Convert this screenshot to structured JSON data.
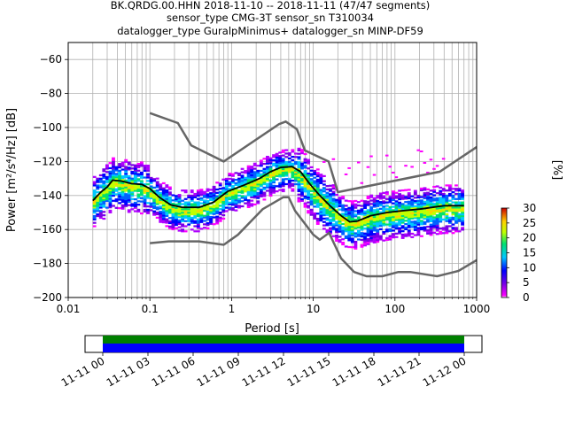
{
  "chart_data": {
    "type": "heatmap",
    "title_lines": [
      "BK.QRDG.00.HHN   2018-11-10 -- 2018-11-11  (47/47 segments)",
      "sensor_type CMG-3T sensor_sn T310034",
      "datalogger_type GuralpMinimus+ datalogger_sn MINP-DF59"
    ],
    "xlabel": "Period [s]",
    "ylabel": "Power [m²/s⁴/Hz] [dB]",
    "x_scale": "log",
    "xlim": [
      0.01,
      1000
    ],
    "ylim": [
      -200,
      -50
    ],
    "x_ticks": [
      {
        "value": 0.01,
        "label": "0.01"
      },
      {
        "value": 0.1,
        "label": "0.1"
      },
      {
        "value": 1,
        "label": "1"
      },
      {
        "value": 10,
        "label": "10"
      },
      {
        "value": 100,
        "label": "100"
      },
      {
        "value": 1000,
        "label": "1000"
      }
    ],
    "y_ticks": [
      -60,
      -80,
      -100,
      -120,
      -140,
      -160,
      -180,
      -200
    ],
    "grid": true,
    "nhnm": [
      [
        0.1,
        -168
      ],
      [
        0.17,
        -167
      ],
      [
        0.4,
        -167
      ],
      [
        0.8,
        -169
      ],
      [
        1.2,
        -163
      ],
      [
        2.4,
        -148
      ],
      [
        4.3,
        -141
      ],
      [
        5.0,
        -141
      ],
      [
        6.0,
        -149
      ],
      [
        10,
        -163
      ],
      [
        12,
        -166
      ],
      [
        15.6,
        -162
      ],
      [
        21.9,
        -177
      ],
      [
        31.6,
        -185
      ],
      [
        45,
        -187.5
      ],
      [
        70,
        -187.5
      ],
      [
        110,
        -185
      ],
      [
        154,
        -185
      ],
      [
        328,
        -187.5
      ],
      [
        600,
        -184.4
      ],
      [
        1000,
        -178
      ]
    ],
    "nlnm": [
      [
        0.1,
        -91.5
      ],
      [
        0.22,
        -97.4
      ],
      [
        0.32,
        -110.5
      ],
      [
        0.8,
        -120
      ],
      [
        3.8,
        -98
      ],
      [
        4.6,
        -96.5
      ],
      [
        6.3,
        -101
      ],
      [
        7.9,
        -113.5
      ],
      [
        15.4,
        -120
      ],
      [
        20,
        -138
      ],
      [
        354,
        -126
      ],
      [
        1000,
        -111.5
      ]
    ],
    "mode_curve": [
      [
        0.02,
        -143
      ],
      [
        0.025,
        -138
      ],
      [
        0.03,
        -135
      ],
      [
        0.035,
        -131
      ],
      [
        0.045,
        -131.5
      ],
      [
        0.06,
        -133
      ],
      [
        0.08,
        -133.5
      ],
      [
        0.1,
        -136
      ],
      [
        0.13,
        -141
      ],
      [
        0.18,
        -145.5
      ],
      [
        0.25,
        -147
      ],
      [
        0.4,
        -147
      ],
      [
        0.6,
        -144
      ],
      [
        0.9,
        -137.5
      ],
      [
        1.4,
        -134
      ],
      [
        2.2,
        -130
      ],
      [
        3.0,
        -126
      ],
      [
        4.0,
        -123.5
      ],
      [
        5.5,
        -123
      ],
      [
        7.0,
        -126
      ],
      [
        9.0,
        -133
      ],
      [
        12,
        -140
      ],
      [
        16,
        -146
      ],
      [
        22,
        -152
      ],
      [
        28,
        -155.5
      ],
      [
        35,
        -155
      ],
      [
        50,
        -152
      ],
      [
        80,
        -150
      ],
      [
        120,
        -149
      ],
      [
        200,
        -148
      ],
      [
        400,
        -146
      ],
      [
        700,
        -146
      ]
    ],
    "colorbar": {
      "label": "[%]",
      "min": 0,
      "max": 30,
      "ticks": [
        0,
        5,
        10,
        15,
        20,
        25,
        30
      ]
    },
    "timeline": {
      "tick_labels": [
        "11-11 00",
        "11-11 03",
        "11-11 06",
        "11-11 09",
        "11-11 12",
        "11-11 15",
        "11-11 18",
        "11-11 21",
        "11-12 00"
      ],
      "colors": {
        "top": "#008000",
        "bottom": "#0000ff"
      }
    },
    "colors": {
      "noise_models": "#666666",
      "mode": "#000000"
    }
  }
}
